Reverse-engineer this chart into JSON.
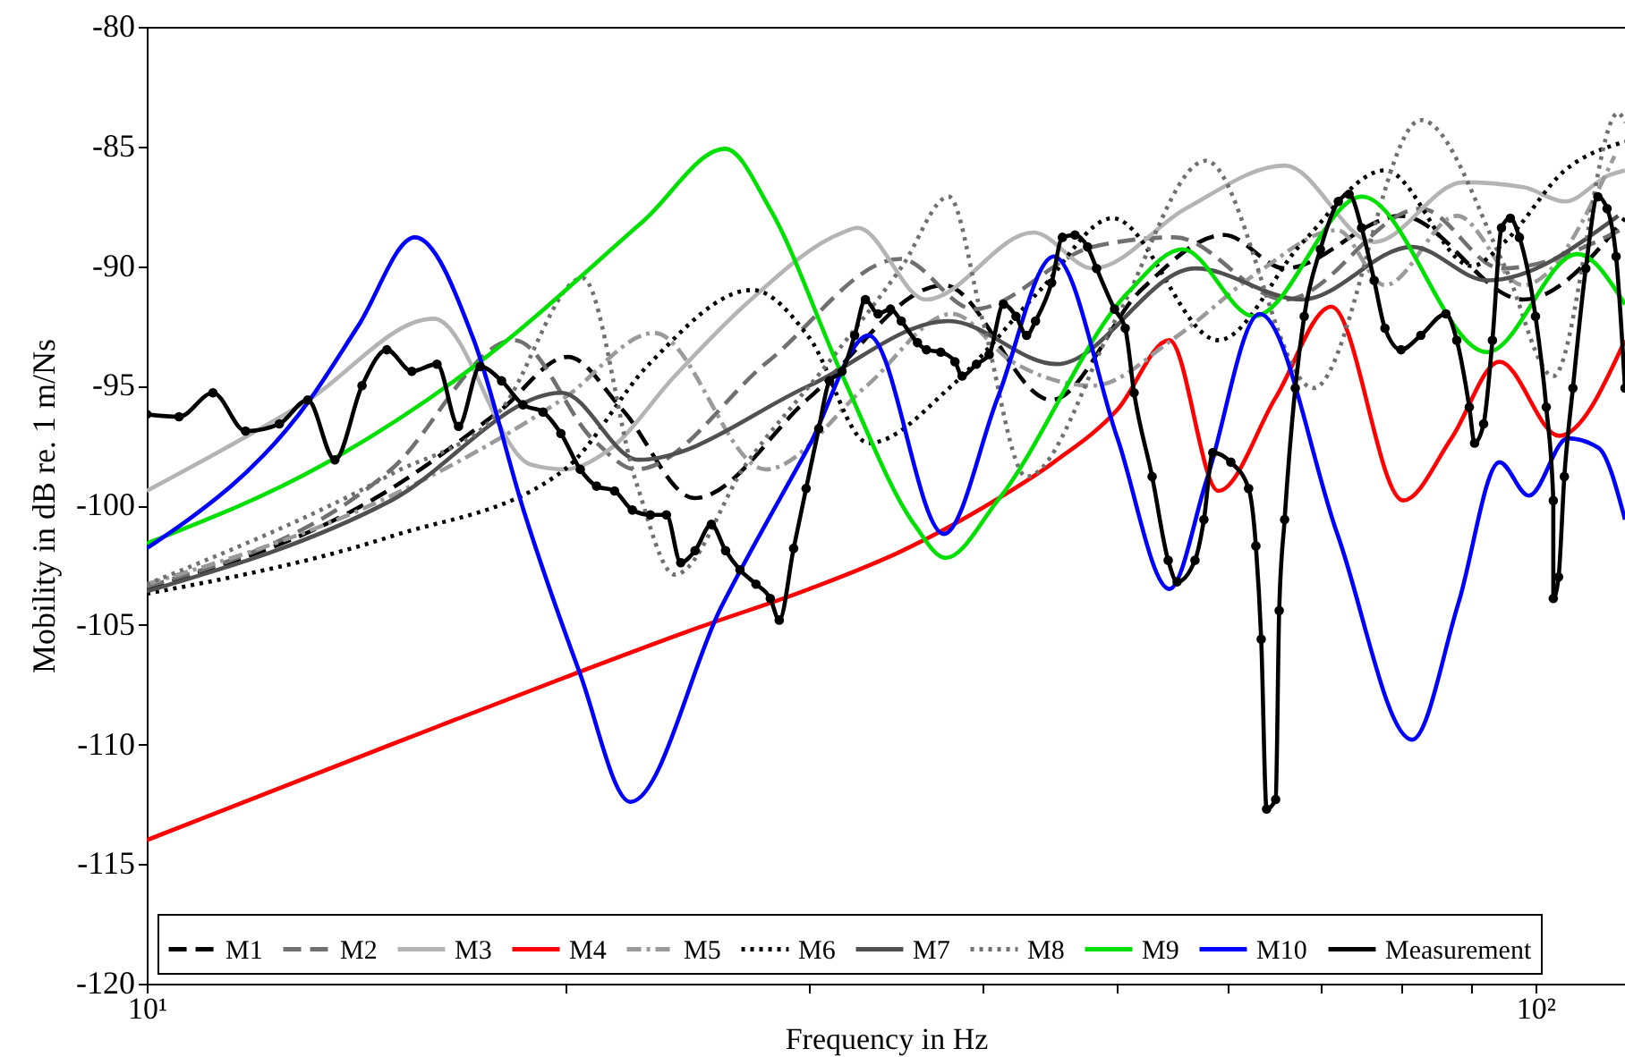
{
  "chart_data": {
    "type": "line",
    "xlabel": "Frequency in Hz",
    "ylabel": "Mobility in dB re. 1 m/Ns",
    "log": "x",
    "xlim": [
      10,
      116
    ],
    "ylim": [
      -120,
      -80
    ],
    "xticks": [
      {
        "value": 10,
        "label": "10¹"
      },
      {
        "value": 20,
        "label": null
      },
      {
        "value": 30,
        "label": null
      },
      {
        "value": 40,
        "label": null
      },
      {
        "value": 50,
        "label": null
      },
      {
        "value": 60,
        "label": null
      },
      {
        "value": 70,
        "label": null
      },
      {
        "value": 80,
        "label": null
      },
      {
        "value": 90,
        "label": null
      },
      {
        "value": 100,
        "label": "10²"
      }
    ],
    "yticks": [
      -120,
      -115,
      -110,
      -105,
      -100,
      -95,
      -90,
      -85,
      -80
    ],
    "grid": false,
    "legend": "bottom",
    "series": [
      {
        "name": "M1",
        "color": "#000000",
        "line_style": "dashed",
        "x": [
          10,
          15,
          18,
          20.1,
          22,
          24.8,
          30,
          37.5,
          44.8,
          52,
          59.7,
          66,
          80,
          98,
          116
        ],
        "values": [
          -103.5,
          -99.3,
          -96,
          -93.8,
          -96,
          -99.7,
          -95.5,
          -90.8,
          -95.6,
          -91,
          -88.7,
          -90.1,
          -87.9,
          -91.4,
          -88
        ]
      },
      {
        "name": "M2",
        "color": "#707070",
        "line_style": "dashed",
        "x": [
          10,
          15,
          18.4,
          21,
          22.5,
          28,
          34.9,
          39.4,
          48,
          55,
          66,
          82.7,
          94.5,
          116
        ],
        "values": [
          -103.4,
          -98.5,
          -93.1,
          -97.3,
          -98.5,
          -94,
          -89.7,
          -91.8,
          -89.2,
          -88.8,
          -91.4,
          -87.6,
          -90.1,
          -88.4
        ]
      },
      {
        "name": "M3",
        "color": "#b4b4b4",
        "line_style": "solid",
        "x": [
          10,
          13,
          16.1,
          18.9,
          20,
          21.5,
          24,
          27,
          31.7,
          32.5,
          36.4,
          43.5,
          48,
          56,
          66,
          76.5,
          88.7,
          98,
          105,
          113,
          116
        ],
        "values": [
          -99.4,
          -95.7,
          -92.2,
          -98.3,
          -98.5,
          -97.7,
          -94.6,
          -91.6,
          -88.6,
          -88.4,
          -91.4,
          -88.6,
          -90.1,
          -87.6,
          -85.8,
          -89,
          -86.5,
          -86.7,
          -87.3,
          -86.2,
          -86
        ]
      },
      {
        "name": "M4",
        "color": "#ff0000",
        "line_style": "solid",
        "x": [
          10,
          15,
          20,
          25,
          30,
          35,
          40,
          45,
          50,
          54.5,
          59.1,
          65,
          71.3,
          80.3,
          87,
          94.2,
          104,
          116
        ],
        "values": [
          -114,
          -110,
          -107.2,
          -105.1,
          -103.5,
          -101.9,
          -100.1,
          -98.2,
          -96,
          -93.1,
          -99.4,
          -95.5,
          -91.7,
          -99.8,
          -97.2,
          -94,
          -97.1,
          -93.1
        ]
      },
      {
        "name": "M5",
        "color": "#9a9a9a",
        "line_style": "dashdot",
        "x": [
          10,
          15,
          20,
          23.2,
          27.9,
          33,
          38,
          42,
          48,
          55,
          63,
          72,
          77.9,
          87.8,
          98,
          114
        ],
        "values": [
          -103.3,
          -99.6,
          -95.5,
          -92.8,
          -98.5,
          -95,
          -92,
          -94,
          -95,
          -93,
          -90.3,
          -88.5,
          -90.8,
          -87.9,
          -90.8,
          -85.4
        ]
      },
      {
        "name": "M6",
        "color": "#000000",
        "line_style": "dotted",
        "x": [
          10,
          15,
          20,
          23,
          27.3,
          30,
          33.1,
          38,
          44,
          49.6,
          59.1,
          68,
          77.9,
          90,
          95,
          105,
          116
        ],
        "values": [
          -103.7,
          -101.3,
          -98.5,
          -94.1,
          -91,
          -93,
          -97.4,
          -95,
          -91,
          -88,
          -93.1,
          -89,
          -86,
          -90,
          -89,
          -86,
          -84.8
        ]
      },
      {
        "name": "M7",
        "color": "#505050",
        "line_style": "solid",
        "x": [
          10,
          15,
          19.9,
          22.6,
          30,
          37.8,
          45.2,
          56.9,
          67.9,
          81.5,
          92.3,
          114.7
        ],
        "values": [
          -103.6,
          -99.8,
          -95.3,
          -98.1,
          -95,
          -92.3,
          -94.1,
          -90.1,
          -91.4,
          -89.2,
          -90.6,
          -87.9
        ]
      },
      {
        "name": "M8",
        "color": "#707070",
        "line_style": "dotted",
        "x": [
          10,
          15,
          18,
          20.6,
          22.5,
          24,
          27,
          31,
          35,
          37.8,
          40,
          43,
          50,
          57.9,
          69.2,
          82.7,
          95,
          103,
          114.7,
          116
        ],
        "values": [
          -103.3,
          -98.7,
          -96,
          -90.5,
          -99,
          -102.9,
          -98.3,
          -94,
          -90,
          -87.1,
          -92.3,
          -98.8,
          -92.1,
          -85.6,
          -95.1,
          -83.9,
          -90,
          -94.6,
          -83.6,
          -84
        ]
      },
      {
        "name": "M9",
        "color": "#00e000",
        "line_style": "solid",
        "x": [
          10,
          13.4,
          17.2,
          22.8,
          26.1,
          28.1,
          31.7,
          35.7,
          37.6,
          41,
          50.9,
          55.7,
          62.7,
          75,
          92.3,
          107.2,
          116
        ],
        "values": [
          -101.6,
          -98.3,
          -94.2,
          -88.1,
          -85.1,
          -87.6,
          -94.6,
          -100.8,
          -102.2,
          -99.8,
          -91.1,
          -89.3,
          -92.1,
          -87.1,
          -93.6,
          -89.5,
          -91.6
        ]
      },
      {
        "name": "M10",
        "color": "#0000ff",
        "line_style": "solid",
        "x": [
          10,
          13.1,
          14.2,
          15.6,
          17.2,
          18.7,
          20.5,
          22.3,
          25.9,
          30,
          33.1,
          37.5,
          41,
          45,
          50,
          54.5,
          58,
          63.3,
          72,
          81.5,
          88,
          94.2,
          98.9,
          105.5,
          111,
          116
        ],
        "values": [
          -101.8,
          -95.6,
          -92.5,
          -88.8,
          -93.1,
          -100.3,
          -107,
          -112.4,
          -104.3,
          -97.5,
          -92.9,
          -101.2,
          -95.5,
          -89.6,
          -97.2,
          -103.5,
          -98.9,
          -92,
          -101.2,
          -109.8,
          -104.1,
          -98.2,
          -99.6,
          -97.2,
          -97.6,
          -100.6
        ]
      },
      {
        "name": "Measurement",
        "color": "#000000",
        "line_style": "solid",
        "marker": "circle",
        "x": [
          10,
          10.55,
          11.16,
          11.78,
          12.46,
          13.06,
          13.66,
          14.29,
          14.89,
          15.52,
          16.18,
          16.77,
          17.38,
          18.01,
          18.66,
          19.29,
          19.87,
          20.52,
          21.08,
          21.72,
          22.37,
          23.05,
          23.67,
          24.24,
          24.82,
          25.5,
          26.11,
          26.74,
          27.46,
          28.12,
          28.54,
          29.23,
          29.84,
          30.47,
          31.02,
          31.67,
          32.34,
          32.92,
          33.62,
          34.32,
          34.94,
          35.89,
          36.43,
          37.3,
          38.19,
          38.65,
          39.58,
          40.42,
          41.39,
          42.26,
          43.01,
          43.65,
          44.83,
          45.64,
          46.6,
          47.58,
          48.3,
          49.76,
          50.65,
          51.4,
          52.96,
          54.39,
          55.2,
          56.86,
          57.71,
          58.57,
          60.34,
          62.15,
          62.9,
          63.46,
          64.03,
          65.0,
          65.38,
          65.97,
          67.15,
          68.15,
          70.0,
          72.12,
          73.41,
          74.95,
          76.53,
          77.91,
          80.02,
          82.68,
          86.2,
          87.76,
          89.61,
          90.4,
          91.76,
          93.11,
          94.52,
          95.92,
          97.37,
          100,
          101.8,
          103.0,
          103.0,
          103.9,
          104.9,
          106.4,
          108.7,
          110.9,
          112.6,
          114.3,
          116
        ],
        "values": [
          -96.2,
          -96.3,
          -95.3,
          -96.9,
          -96.6,
          -95.6,
          -98.1,
          -95.0,
          -93.5,
          -94.4,
          -94.1,
          -96.7,
          -94.2,
          -94.8,
          -95.8,
          -96.1,
          -97.0,
          -98.5,
          -99.2,
          -99.4,
          -100.2,
          -100.4,
          -100.4,
          -102.4,
          -101.9,
          -100.8,
          -101.9,
          -102.7,
          -103.3,
          -103.9,
          -104.8,
          -101.8,
          -99.3,
          -96.8,
          -94.8,
          -94.4,
          -92.9,
          -91.4,
          -92.0,
          -91.8,
          -92.3,
          -93.2,
          -93.5,
          -93.6,
          -94.0,
          -94.6,
          -94.1,
          -93.7,
          -91.6,
          -92.1,
          -92.9,
          -92.3,
          -90.7,
          -88.8,
          -88.7,
          -89.2,
          -90.1,
          -91.8,
          -92.6,
          -95.3,
          -98.8,
          -102.3,
          -103.2,
          -102.3,
          -100.6,
          -97.8,
          -98.2,
          -99.3,
          -101.7,
          -105.6,
          -112.7,
          -112.3,
          -104.4,
          -100.6,
          -95.1,
          -92.1,
          -89.3,
          -87.3,
          -87.0,
          -88.4,
          -90.6,
          -92.6,
          -93.5,
          -92.9,
          -92.0,
          -93.1,
          -95.9,
          -97.4,
          -96.6,
          -93.1,
          -88.4,
          -88.0,
          -88.8,
          -92.1,
          -95.9,
          -99.8,
          -103.9,
          -103.0,
          -98.8,
          -95.1,
          -90.1,
          -87.1,
          -87.6,
          -89.6,
          -95.1
        ]
      }
    ]
  }
}
